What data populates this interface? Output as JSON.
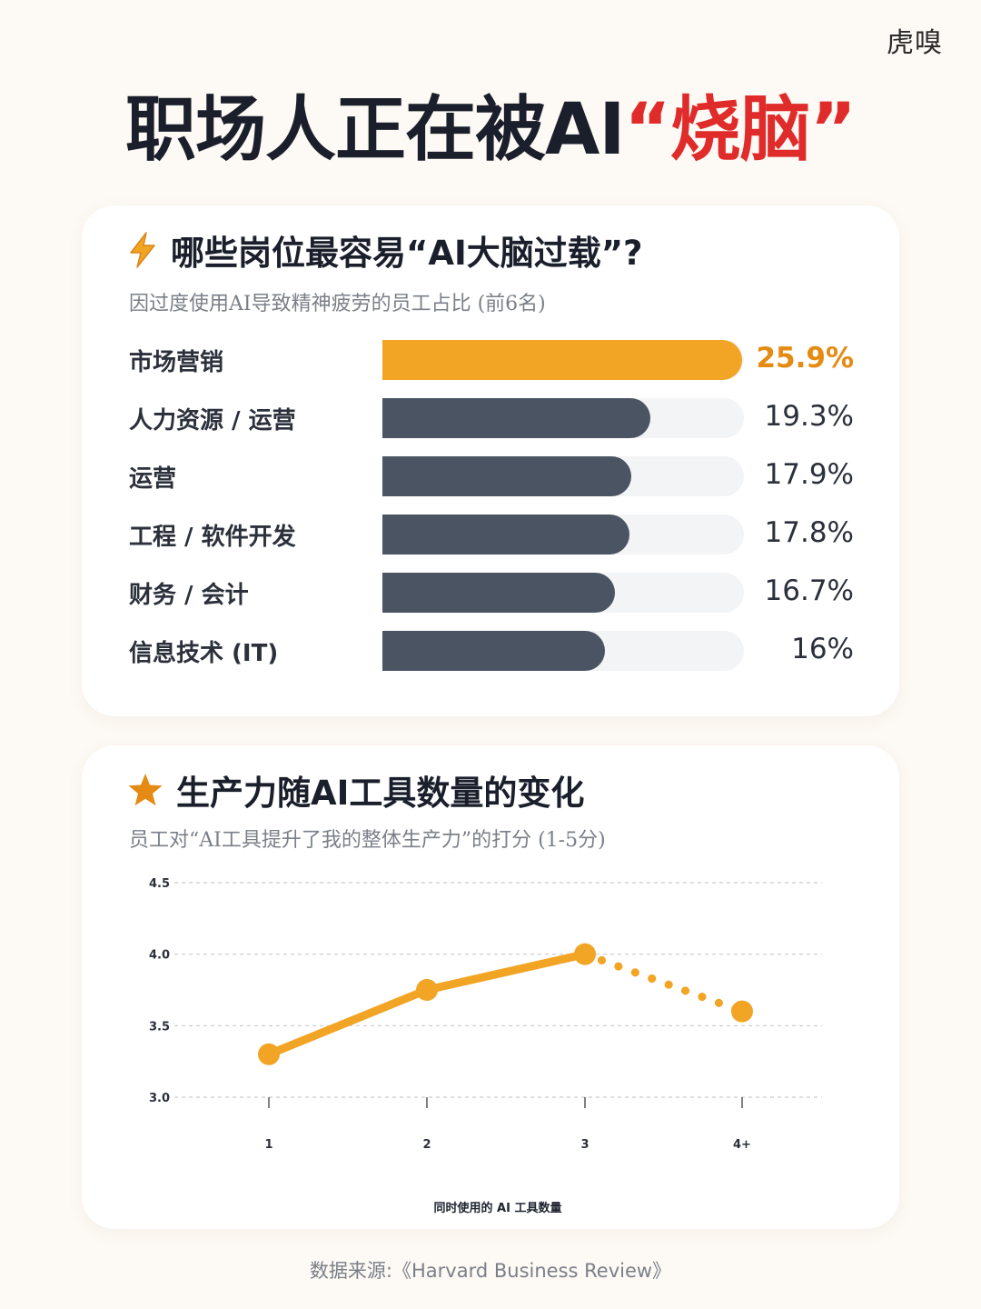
{
  "brand": "虎嗅",
  "title": {
    "main": "职场人正在被AI",
    "highlight": "“烧脑”"
  },
  "card1": {
    "title": "哪些岗位最容易“AI大脑过载”?",
    "subtitle": "因过度使用AI导致精神疲劳的员工占比 (前6名)"
  },
  "card2": {
    "title": "生产力随AI工具数量的变化",
    "subtitle": "员工对“AI工具提升了我的整体生产力”的打分 (1-5分)"
  },
  "chart_data": [
    {
      "type": "bar",
      "orientation": "horizontal",
      "categories": [
        "市场营销",
        "人力资源 / 运营",
        "运营",
        "工程 / 软件开发",
        "财务 / 会计",
        "信息技术 (IT)"
      ],
      "values": [
        25.9,
        19.3,
        17.9,
        17.8,
        16.7,
        16
      ],
      "value_labels": [
        "25.9%",
        "19.3%",
        "17.9%",
        "17.8%",
        "16.7%",
        "16%"
      ],
      "xlim": [
        0,
        26
      ],
      "colors": {
        "highlight": "#f2a424",
        "default": "#4a5462",
        "track": "#f3f4f6"
      }
    },
    {
      "type": "line",
      "x": [
        "1",
        "2",
        "3",
        "4+"
      ],
      "y": [
        3.3,
        3.75,
        4.0,
        3.6
      ],
      "solid_until_index": 2,
      "ylim": [
        3.0,
        4.5
      ],
      "yticks": [
        "3.0",
        "3.5",
        "4.0",
        "4.5"
      ],
      "xlabel": "同时使用的 AI 工具数量",
      "grid": true,
      "colors": {
        "line": "#f2a424"
      }
    }
  ],
  "source": "数据来源:《Harvard Business Review》"
}
